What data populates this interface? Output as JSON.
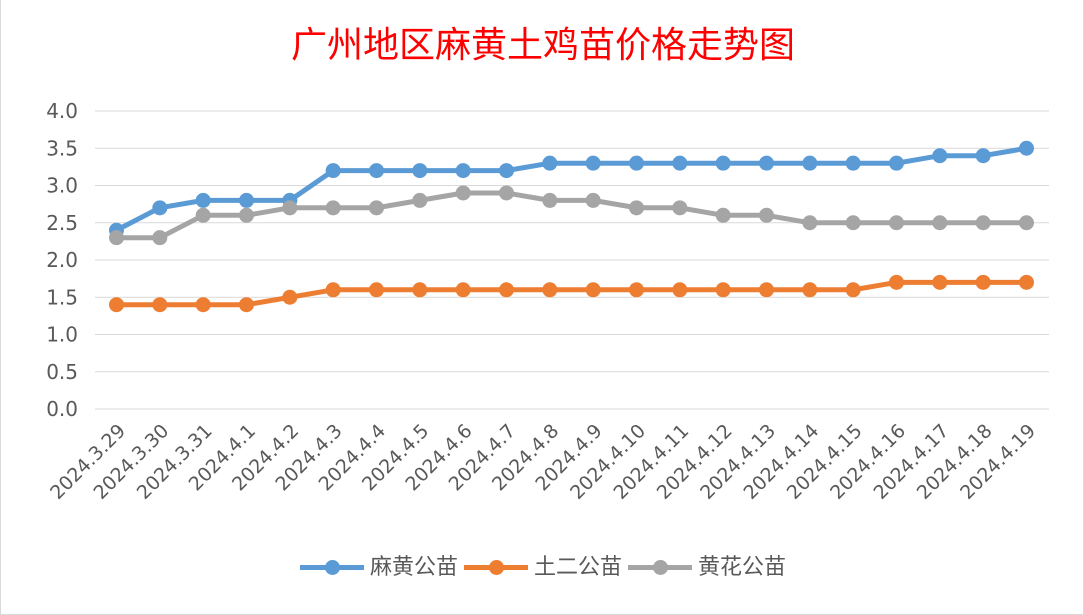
{
  "chart_data": {
    "type": "line",
    "title": "广州地区麻黄土鸡苗价格走势图",
    "xlabel": "",
    "ylabel": "",
    "ylim": [
      0,
      4
    ],
    "yticks": [
      "0.0",
      "0.5",
      "1.0",
      "1.5",
      "2.0",
      "2.5",
      "3.0",
      "3.5",
      "4.0"
    ],
    "grid": true,
    "legend_position": "bottom",
    "categories": [
      "2024.3.29",
      "2024.3.30",
      "2024.3.31",
      "2024.4.1",
      "2024.4.2",
      "2024.4.3",
      "2024.4.4",
      "2024.4.5",
      "2024.4.6",
      "2024.4.7",
      "2024.4.8",
      "2024.4.9",
      "2024.4.10",
      "2024.4.11",
      "2024.4.12",
      "2024.4.13",
      "2024.4.14",
      "2024.4.15",
      "2024.4.16",
      "2024.4.17",
      "2024.4.18",
      "2024.4.19"
    ],
    "series": [
      {
        "name": "麻黄公苗",
        "color": "#5b9bd5",
        "values": [
          2.4,
          2.7,
          2.8,
          2.8,
          2.8,
          3.2,
          3.2,
          3.2,
          3.2,
          3.2,
          3.3,
          3.3,
          3.3,
          3.3,
          3.3,
          3.3,
          3.3,
          3.3,
          3.3,
          3.4,
          3.4,
          3.5
        ]
      },
      {
        "name": "土二公苗",
        "color": "#ed7d31",
        "values": [
          1.4,
          1.4,
          1.4,
          1.4,
          1.5,
          1.6,
          1.6,
          1.6,
          1.6,
          1.6,
          1.6,
          1.6,
          1.6,
          1.6,
          1.6,
          1.6,
          1.6,
          1.6,
          1.7,
          1.7,
          1.7,
          1.7
        ]
      },
      {
        "name": "黄花公苗",
        "color": "#a5a5a5",
        "values": [
          2.3,
          2.3,
          2.6,
          2.6,
          2.7,
          2.7,
          2.7,
          2.8,
          2.9,
          2.9,
          2.8,
          2.8,
          2.7,
          2.7,
          2.6,
          2.6,
          2.5,
          2.5,
          2.5,
          2.5,
          2.5,
          2.5
        ]
      }
    ]
  }
}
